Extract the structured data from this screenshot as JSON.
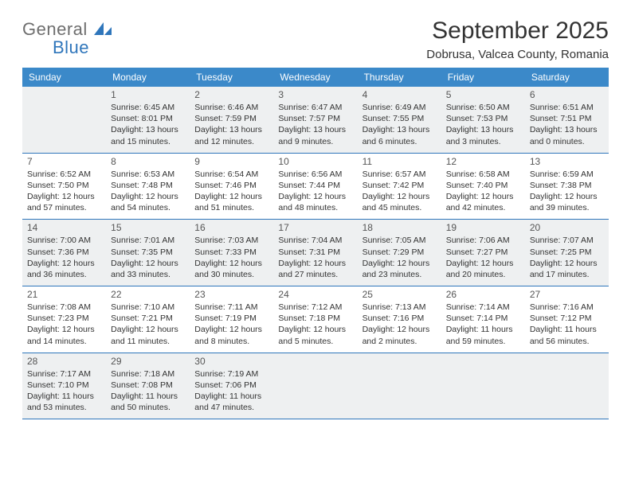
{
  "brand": {
    "word1": "General",
    "word2": "Blue"
  },
  "title": "September 2025",
  "location": "Dobrusa, Valcea County, Romania",
  "colors": {
    "header_bg": "#3b89c9",
    "header_text": "#ffffff",
    "rule": "#2f76bb",
    "shade_bg": "#eef0f1",
    "body_text": "#333333",
    "logo_gray": "#6e6e6e",
    "logo_blue": "#2f76bb",
    "page_bg": "#ffffff"
  },
  "typography": {
    "title_fontsize": 30,
    "location_fontsize": 15,
    "weekday_fontsize": 12,
    "daynum_fontsize": 12,
    "body_fontsize": 10.5
  },
  "weekdays": [
    "Sunday",
    "Monday",
    "Tuesday",
    "Wednesday",
    "Thursday",
    "Friday",
    "Saturday"
  ],
  "weeks": [
    [
      {
        "num": "",
        "shaded": true
      },
      {
        "num": "1",
        "shaded": true,
        "sunrise": "Sunrise: 6:45 AM",
        "sunset": "Sunset: 8:01 PM",
        "daylight1": "Daylight: 13 hours",
        "daylight2": "and 15 minutes."
      },
      {
        "num": "2",
        "shaded": true,
        "sunrise": "Sunrise: 6:46 AM",
        "sunset": "Sunset: 7:59 PM",
        "daylight1": "Daylight: 13 hours",
        "daylight2": "and 12 minutes."
      },
      {
        "num": "3",
        "shaded": true,
        "sunrise": "Sunrise: 6:47 AM",
        "sunset": "Sunset: 7:57 PM",
        "daylight1": "Daylight: 13 hours",
        "daylight2": "and 9 minutes."
      },
      {
        "num": "4",
        "shaded": true,
        "sunrise": "Sunrise: 6:49 AM",
        "sunset": "Sunset: 7:55 PM",
        "daylight1": "Daylight: 13 hours",
        "daylight2": "and 6 minutes."
      },
      {
        "num": "5",
        "shaded": true,
        "sunrise": "Sunrise: 6:50 AM",
        "sunset": "Sunset: 7:53 PM",
        "daylight1": "Daylight: 13 hours",
        "daylight2": "and 3 minutes."
      },
      {
        "num": "6",
        "shaded": true,
        "sunrise": "Sunrise: 6:51 AM",
        "sunset": "Sunset: 7:51 PM",
        "daylight1": "Daylight: 13 hours",
        "daylight2": "and 0 minutes."
      }
    ],
    [
      {
        "num": "7",
        "sunrise": "Sunrise: 6:52 AM",
        "sunset": "Sunset: 7:50 PM",
        "daylight1": "Daylight: 12 hours",
        "daylight2": "and 57 minutes."
      },
      {
        "num": "8",
        "sunrise": "Sunrise: 6:53 AM",
        "sunset": "Sunset: 7:48 PM",
        "daylight1": "Daylight: 12 hours",
        "daylight2": "and 54 minutes."
      },
      {
        "num": "9",
        "sunrise": "Sunrise: 6:54 AM",
        "sunset": "Sunset: 7:46 PM",
        "daylight1": "Daylight: 12 hours",
        "daylight2": "and 51 minutes."
      },
      {
        "num": "10",
        "sunrise": "Sunrise: 6:56 AM",
        "sunset": "Sunset: 7:44 PM",
        "daylight1": "Daylight: 12 hours",
        "daylight2": "and 48 minutes."
      },
      {
        "num": "11",
        "sunrise": "Sunrise: 6:57 AM",
        "sunset": "Sunset: 7:42 PM",
        "daylight1": "Daylight: 12 hours",
        "daylight2": "and 45 minutes."
      },
      {
        "num": "12",
        "sunrise": "Sunrise: 6:58 AM",
        "sunset": "Sunset: 7:40 PM",
        "daylight1": "Daylight: 12 hours",
        "daylight2": "and 42 minutes."
      },
      {
        "num": "13",
        "sunrise": "Sunrise: 6:59 AM",
        "sunset": "Sunset: 7:38 PM",
        "daylight1": "Daylight: 12 hours",
        "daylight2": "and 39 minutes."
      }
    ],
    [
      {
        "num": "14",
        "shaded": true,
        "sunrise": "Sunrise: 7:00 AM",
        "sunset": "Sunset: 7:36 PM",
        "daylight1": "Daylight: 12 hours",
        "daylight2": "and 36 minutes."
      },
      {
        "num": "15",
        "shaded": true,
        "sunrise": "Sunrise: 7:01 AM",
        "sunset": "Sunset: 7:35 PM",
        "daylight1": "Daylight: 12 hours",
        "daylight2": "and 33 minutes."
      },
      {
        "num": "16",
        "shaded": true,
        "sunrise": "Sunrise: 7:03 AM",
        "sunset": "Sunset: 7:33 PM",
        "daylight1": "Daylight: 12 hours",
        "daylight2": "and 30 minutes."
      },
      {
        "num": "17",
        "shaded": true,
        "sunrise": "Sunrise: 7:04 AM",
        "sunset": "Sunset: 7:31 PM",
        "daylight1": "Daylight: 12 hours",
        "daylight2": "and 27 minutes."
      },
      {
        "num": "18",
        "shaded": true,
        "sunrise": "Sunrise: 7:05 AM",
        "sunset": "Sunset: 7:29 PM",
        "daylight1": "Daylight: 12 hours",
        "daylight2": "and 23 minutes."
      },
      {
        "num": "19",
        "shaded": true,
        "sunrise": "Sunrise: 7:06 AM",
        "sunset": "Sunset: 7:27 PM",
        "daylight1": "Daylight: 12 hours",
        "daylight2": "and 20 minutes."
      },
      {
        "num": "20",
        "shaded": true,
        "sunrise": "Sunrise: 7:07 AM",
        "sunset": "Sunset: 7:25 PM",
        "daylight1": "Daylight: 12 hours",
        "daylight2": "and 17 minutes."
      }
    ],
    [
      {
        "num": "21",
        "sunrise": "Sunrise: 7:08 AM",
        "sunset": "Sunset: 7:23 PM",
        "daylight1": "Daylight: 12 hours",
        "daylight2": "and 14 minutes."
      },
      {
        "num": "22",
        "sunrise": "Sunrise: 7:10 AM",
        "sunset": "Sunset: 7:21 PM",
        "daylight1": "Daylight: 12 hours",
        "daylight2": "and 11 minutes."
      },
      {
        "num": "23",
        "sunrise": "Sunrise: 7:11 AM",
        "sunset": "Sunset: 7:19 PM",
        "daylight1": "Daylight: 12 hours",
        "daylight2": "and 8 minutes."
      },
      {
        "num": "24",
        "sunrise": "Sunrise: 7:12 AM",
        "sunset": "Sunset: 7:18 PM",
        "daylight1": "Daylight: 12 hours",
        "daylight2": "and 5 minutes."
      },
      {
        "num": "25",
        "sunrise": "Sunrise: 7:13 AM",
        "sunset": "Sunset: 7:16 PM",
        "daylight1": "Daylight: 12 hours",
        "daylight2": "and 2 minutes."
      },
      {
        "num": "26",
        "sunrise": "Sunrise: 7:14 AM",
        "sunset": "Sunset: 7:14 PM",
        "daylight1": "Daylight: 11 hours",
        "daylight2": "and 59 minutes."
      },
      {
        "num": "27",
        "sunrise": "Sunrise: 7:16 AM",
        "sunset": "Sunset: 7:12 PM",
        "daylight1": "Daylight: 11 hours",
        "daylight2": "and 56 minutes."
      }
    ],
    [
      {
        "num": "28",
        "shaded": true,
        "sunrise": "Sunrise: 7:17 AM",
        "sunset": "Sunset: 7:10 PM",
        "daylight1": "Daylight: 11 hours",
        "daylight2": "and 53 minutes."
      },
      {
        "num": "29",
        "shaded": true,
        "sunrise": "Sunrise: 7:18 AM",
        "sunset": "Sunset: 7:08 PM",
        "daylight1": "Daylight: 11 hours",
        "daylight2": "and 50 minutes."
      },
      {
        "num": "30",
        "shaded": true,
        "sunrise": "Sunrise: 7:19 AM",
        "sunset": "Sunset: 7:06 PM",
        "daylight1": "Daylight: 11 hours",
        "daylight2": "and 47 minutes."
      },
      {
        "num": "",
        "shaded": true
      },
      {
        "num": "",
        "shaded": true
      },
      {
        "num": "",
        "shaded": true
      },
      {
        "num": "",
        "shaded": true
      }
    ]
  ]
}
